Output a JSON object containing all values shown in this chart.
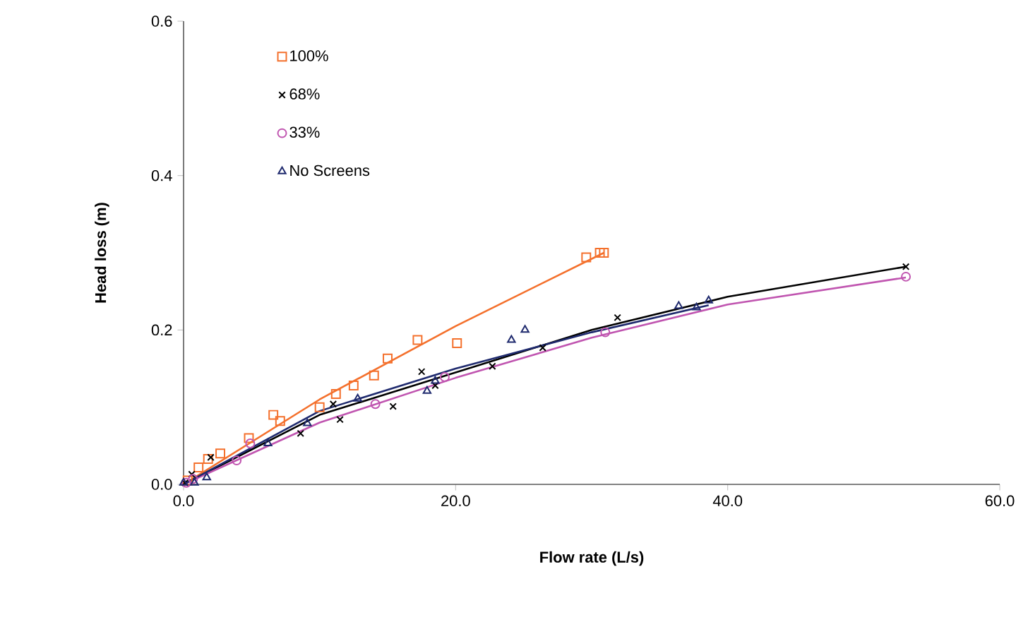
{
  "chart_data": {
    "type": "scatter",
    "xlabel": "Flow rate (L/s)",
    "ylabel": "Head loss (m)",
    "xlim": [
      0,
      60
    ],
    "ylim": [
      0,
      0.6
    ],
    "xticks": [
      {
        "value": 0,
        "label": "0.0"
      },
      {
        "value": 20,
        "label": "20.0"
      },
      {
        "value": 40,
        "label": "40.0"
      },
      {
        "value": 60,
        "label": "60.0"
      }
    ],
    "yticks": [
      {
        "value": 0,
        "label": "0.0"
      },
      {
        "value": 0.2,
        "label": "0.2"
      },
      {
        "value": 0.4,
        "label": "0.4"
      },
      {
        "value": 0.6,
        "label": "0.6"
      }
    ],
    "grid": false,
    "legend": "top left",
    "series": [
      {
        "name": "100%",
        "color": "#f4702c",
        "marker": "square",
        "x": [
          0.3,
          1.1,
          1.8,
          2.7,
          4.8,
          6.6,
          7.1,
          10,
          11.2,
          12.5,
          14,
          15,
          17.2,
          20.1,
          29.6,
          30.6,
          30.9
        ],
        "values": [
          0.005,
          0.022,
          0.033,
          0.04,
          0.06,
          0.09,
          0.082,
          0.1,
          0.117,
          0.128,
          0.141,
          0.163,
          0.187,
          0.183,
          0.294,
          0.3,
          0.3
        ]
      },
      {
        "name": "68%",
        "color": "#000000",
        "marker": "cross",
        "x": [
          0.1,
          0.6,
          2,
          8.6,
          11,
          11.5,
          15.4,
          17.5,
          18.5,
          22.7,
          26.4,
          31.9,
          53.1
        ],
        "values": [
          0.002,
          0.013,
          0.035,
          0.066,
          0.104,
          0.084,
          0.101,
          0.146,
          0.128,
          0.153,
          0.177,
          0.216,
          0.282
        ]
      },
      {
        "name": "33%",
        "color": "#c055b0",
        "marker": "circle",
        "x": [
          0.2,
          0.7,
          3.9,
          4.9,
          14.1,
          19.2,
          31,
          53.1
        ],
        "values": [
          0.002,
          0.007,
          0.031,
          0.053,
          0.104,
          0.139,
          0.197,
          0.269
        ]
      },
      {
        "name": "No Screens",
        "color": "#1f2a6e",
        "marker": "triangle",
        "x": [
          0,
          0.8,
          1.7,
          6.2,
          9.1,
          12.8,
          17.9,
          18.5,
          24.1,
          25.1,
          36.4,
          37.7,
          38.6
        ],
        "values": [
          0.002,
          0.002,
          0.009,
          0.053,
          0.079,
          0.111,
          0.121,
          0.134,
          0.187,
          0.2,
          0.231,
          0.229,
          0.238
        ]
      },
      {
        "type": "line",
        "color": "#f4702c",
        "marker": "none",
        "x": [
          0,
          10,
          20,
          30.9
        ],
        "values": [
          0,
          0.11,
          0.205,
          0.3
        ]
      },
      {
        "type": "line",
        "color": "#000000",
        "marker": "none",
        "x": [
          0,
          10,
          20,
          30,
          40,
          53.1
        ],
        "values": [
          0,
          0.09,
          0.145,
          0.2,
          0.243,
          0.282
        ]
      },
      {
        "type": "line",
        "color": "#c055b0",
        "marker": "none",
        "x": [
          0,
          10,
          20,
          30,
          40,
          53.1
        ],
        "values": [
          0,
          0.08,
          0.138,
          0.19,
          0.233,
          0.268
        ]
      },
      {
        "type": "line",
        "color": "#1f2a6e",
        "marker": "none",
        "x": [
          0,
          10,
          20,
          30,
          38.6
        ],
        "values": [
          0,
          0.095,
          0.15,
          0.197,
          0.232
        ]
      }
    ]
  }
}
